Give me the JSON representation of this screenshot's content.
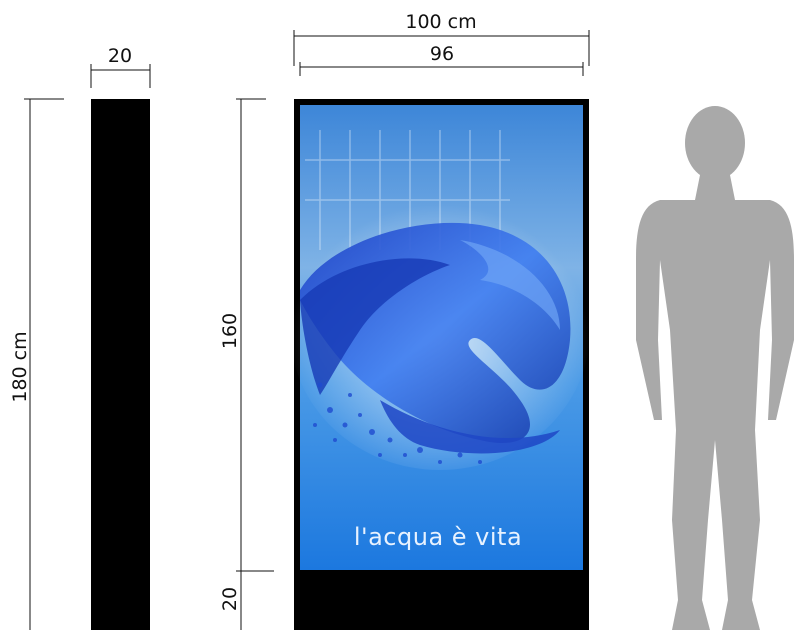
{
  "dimensions": {
    "side_width": "20",
    "side_height": "180 cm",
    "total_width": "100 cm",
    "screen_width": "96",
    "screen_height": "160",
    "base_height": "20"
  },
  "screen": {
    "caption": "l'acqua è vita"
  },
  "colors": {
    "frame": "#000000",
    "silhouette": "#a9a9a9",
    "screen_top": "#1f6fcf",
    "screen_bottom": "#2f8fe8",
    "water": "#2a4fd0"
  }
}
